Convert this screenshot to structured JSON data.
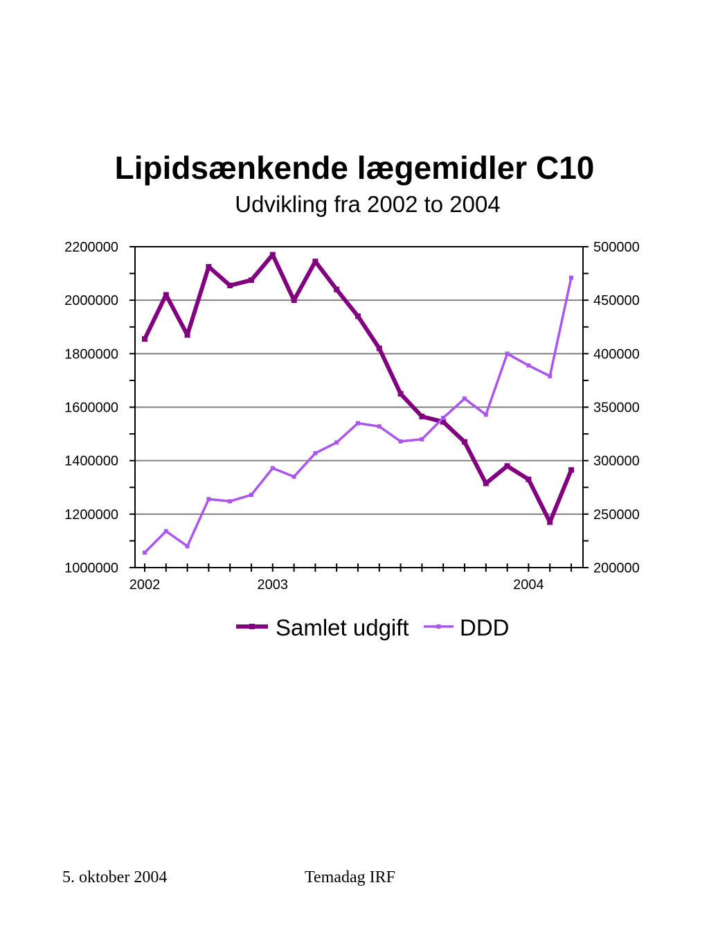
{
  "slide": {
    "footer_date": "5. oktober 2004",
    "footer_event": "Temadag IRF"
  },
  "chart_data": {
    "type": "line",
    "title": "Lipidsænkende lægemidler C10",
    "subtitle": "Udvikling fra 2002 to 2004",
    "x_labels": [
      "2002",
      "2003",
      "2004"
    ],
    "x_label_index": [
      0,
      6,
      18
    ],
    "y_left": {
      "ylim": [
        1000000,
        2200000
      ],
      "ticks": [
        "1000000",
        "1200000",
        "1400000",
        "1600000",
        "1800000",
        "2000000",
        "2200000"
      ]
    },
    "y_right": {
      "ylim": [
        200000,
        500000
      ],
      "ticks": [
        "200000",
        "250000",
        "300000",
        "350000",
        "400000",
        "450000",
        "500000"
      ]
    },
    "grid": true,
    "legend_position": "bottom",
    "series": [
      {
        "name": "Samlet udgift",
        "axis": "left",
        "color": "#800080",
        "values": [
          1855000,
          2020000,
          1870000,
          2125000,
          2055000,
          2075000,
          2170000,
          2000000,
          2145000,
          2040000,
          1940000,
          1820000,
          1650000,
          1565000,
          1545000,
          1470000,
          1315000,
          1380000,
          1330000,
          1170000,
          1365000
        ]
      },
      {
        "name": "DDD",
        "axis": "right",
        "color": "#aa55ee",
        "values": [
          214000,
          234000,
          220000,
          264000,
          262000,
          268000,
          293000,
          285000,
          307000,
          317000,
          335000,
          332000,
          318000,
          320000,
          340000,
          358000,
          343000,
          400000,
          389000,
          379000,
          471000
        ]
      }
    ]
  }
}
